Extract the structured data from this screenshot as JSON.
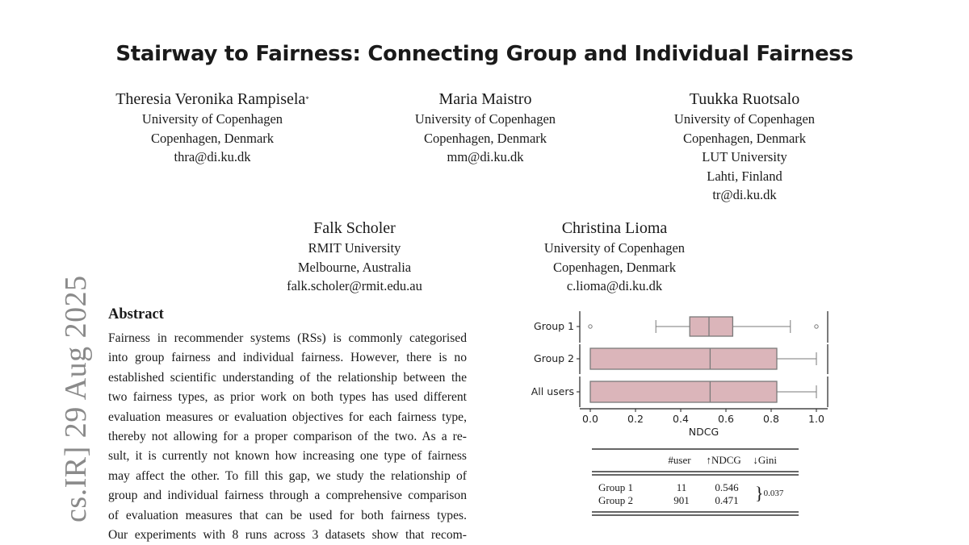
{
  "title": "Stairway to Fairness: Connecting Group and Individual Fairness",
  "authors": [
    {
      "name": "Theresia Veronika Rampisela",
      "mark": "*",
      "lines": [
        "University of Copenhagen",
        "Copenhagen, Denmark",
        "thra@di.ku.dk"
      ]
    },
    {
      "name": "Maria Maistro",
      "lines": [
        "University of Copenhagen",
        "Copenhagen, Denmark",
        "mm@di.ku.dk"
      ]
    },
    {
      "name": "Tuukka Ruotsalo",
      "lines": [
        "University of Copenhagen",
        "Copenhagen, Denmark",
        "LUT University",
        "Lahti, Finland",
        "tr@di.ku.dk"
      ]
    },
    {
      "name": "Falk Scholer",
      "lines": [
        "RMIT University",
        "Melbourne, Australia",
        "falk.scholer@rmit.edu.au"
      ]
    },
    {
      "name": "Christina Lioma",
      "lines": [
        "University of Copenhagen",
        "Copenhagen, Denmark",
        "c.lioma@di.ku.dk"
      ]
    }
  ],
  "arxiv_sidebar": "cs.IR]  29 Aug 2025",
  "abstract": {
    "heading": "Abstract",
    "lines": [
      "Fairness in recommender systems (RSs) is commonly categorised",
      "into group fairness and individual fairness. However, there is no",
      "established scientific understanding of the relationship between the",
      "two fairness types, as prior work on both types has used different",
      "evaluation measures or evaluation objectives for each fairness type,",
      "thereby not allowing for a proper comparison of the two. As a re-",
      "sult, it is currently not known how increasing one type of fairness",
      "may affect the other. To fill this gap, we study the relationship of",
      "group and individual fairness through a comprehensive comparison",
      "of evaluation measures that can be used for both fairness types.",
      "Our experiments with 8 runs across 3 datasets show that recom-"
    ]
  },
  "chart_data": {
    "type": "boxplot",
    "orientation": "horizontal",
    "xlabel": "NDCG",
    "xlim": [
      0,
      1
    ],
    "xticks": [
      "0.0",
      "0.2",
      "0.4",
      "0.6",
      "0.8",
      "1.0"
    ],
    "box_color": "#dbb5ba",
    "line_color": "#7a7a7a",
    "categories": [
      "Group 1",
      "Group 2",
      "All users"
    ],
    "boxes": [
      {
        "label": "Group 1",
        "whisker_low": 0.29,
        "q1": 0.44,
        "median": 0.525,
        "q3": 0.63,
        "whisker_high": 0.885,
        "outliers": [
          0.0,
          1.0
        ]
      },
      {
        "label": "Group 2",
        "whisker_low": 0.0,
        "q1": 0.0,
        "median": 0.53,
        "q3": 0.825,
        "whisker_high": 1.0,
        "outliers": []
      },
      {
        "label": "All users",
        "whisker_low": 0.0,
        "q1": 0.0,
        "median": 0.53,
        "q3": 0.825,
        "whisker_high": 1.0,
        "outliers": []
      }
    ]
  },
  "table": {
    "headers": [
      "",
      "#user",
      "↑NDCG",
      "↓Gini"
    ],
    "rows": [
      [
        "Group 1",
        "11",
        "0.546"
      ],
      [
        "Group 2",
        "901",
        "0.471"
      ]
    ],
    "shared_gini": "0.037"
  }
}
